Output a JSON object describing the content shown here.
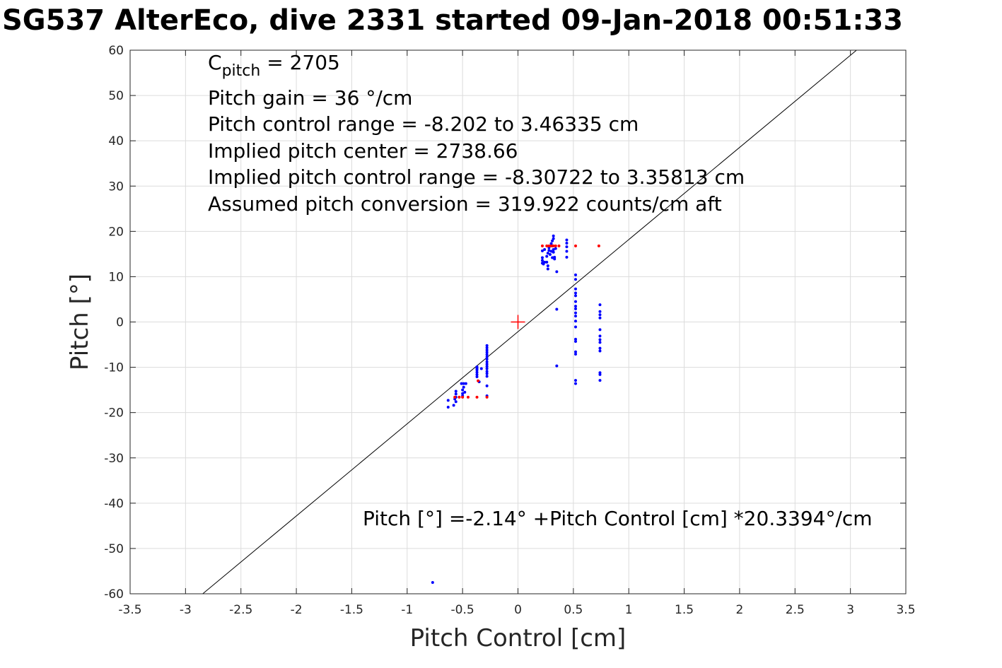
{
  "chart_data": {
    "type": "scatter",
    "title": "SG537 AlterEco, dive 2331 started 09-Jan-2018 00:51:33",
    "xlabel": "Pitch Control [cm]",
    "ylabel": "Pitch [°]",
    "xlim": [
      -3.5,
      3.5
    ],
    "ylim": [
      -60,
      60
    ],
    "xticks": [
      "-3.5",
      "-3",
      "-2.5",
      "-2",
      "-1.5",
      "-1",
      "-0.5",
      "0",
      "0.5",
      "1",
      "1.5",
      "2",
      "2.5",
      "3",
      "3.5"
    ],
    "yticks": [
      "60",
      "50",
      "40",
      "30",
      "20",
      "10",
      "0",
      "-10",
      "-20",
      "-30",
      "-40",
      "-50",
      "-60"
    ],
    "grid": true,
    "colors": {
      "measured": "#0000ff",
      "flagged": "#ff0000",
      "center_marker": "#ff0000",
      "fit_line": "#000000"
    },
    "fit_line": {
      "intercept": -2.14,
      "slope": 20.3394
    },
    "center_marker": {
      "x": 0,
      "y": 0
    },
    "series": [
      {
        "color": "#0000ff",
        "points": [
          [
            -0.63,
            -17.3
          ],
          [
            -0.63,
            -18.8
          ],
          [
            -0.58,
            -18.4
          ],
          [
            -0.57,
            -17.0
          ],
          [
            -0.56,
            -16.6
          ],
          [
            -0.56,
            -15.9
          ],
          [
            -0.56,
            -15.3
          ],
          [
            -0.56,
            -17.6
          ],
          [
            -0.51,
            -13.6
          ],
          [
            -0.5,
            -15.0
          ],
          [
            -0.5,
            -15.8
          ],
          [
            -0.5,
            -16.3
          ],
          [
            -0.49,
            -14.4
          ],
          [
            -0.49,
            -13.6
          ],
          [
            -0.48,
            -15.5
          ],
          [
            -0.47,
            -13.6
          ],
          [
            -0.37,
            -10.1
          ],
          [
            -0.37,
            -10.6
          ],
          [
            -0.37,
            -11.1
          ],
          [
            -0.37,
            -11.6
          ],
          [
            -0.37,
            -12.1
          ],
          [
            -0.37,
            -10.3
          ],
          [
            -0.37,
            -9.9
          ],
          [
            -0.35,
            -13.2
          ],
          [
            -0.33,
            -10.3
          ],
          [
            -0.28,
            -5.2
          ],
          [
            -0.28,
            -5.7
          ],
          [
            -0.28,
            -6.2
          ],
          [
            -0.28,
            -6.7
          ],
          [
            -0.28,
            -7.2
          ],
          [
            -0.28,
            -7.7
          ],
          [
            -0.28,
            -8.2
          ],
          [
            -0.28,
            -8.8
          ],
          [
            -0.28,
            -9.3
          ],
          [
            -0.28,
            -9.8
          ],
          [
            -0.28,
            -10.3
          ],
          [
            -0.28,
            -10.9
          ],
          [
            -0.28,
            -11.4
          ],
          [
            -0.28,
            -12.0
          ],
          [
            -0.28,
            -14.1
          ],
          [
            -0.28,
            -16.3
          ],
          [
            0.22,
            13.0
          ],
          [
            0.22,
            13.6
          ],
          [
            0.22,
            14.2
          ],
          [
            0.22,
            15.7
          ],
          [
            0.23,
            12.8
          ],
          [
            0.24,
            13.2
          ],
          [
            0.24,
            16.0
          ],
          [
            0.26,
            14.5
          ],
          [
            0.26,
            13.2
          ],
          [
            0.27,
            11.7
          ],
          [
            0.27,
            12.4
          ],
          [
            0.27,
            15.2
          ],
          [
            0.28,
            15.8
          ],
          [
            0.28,
            16.4
          ],
          [
            0.29,
            14.9
          ],
          [
            0.3,
            17.3
          ],
          [
            0.3,
            15.6
          ],
          [
            0.31,
            14.2
          ],
          [
            0.31,
            16.8
          ],
          [
            0.31,
            17.9
          ],
          [
            0.32,
            18.4
          ],
          [
            0.32,
            19.0
          ],
          [
            0.32,
            16.0
          ],
          [
            0.32,
            15.4
          ],
          [
            0.33,
            14.3
          ],
          [
            0.33,
            13.9
          ],
          [
            0.34,
            16.2
          ],
          [
            0.35,
            11.1
          ],
          [
            0.44,
            18.1
          ],
          [
            0.44,
            17.4
          ],
          [
            0.44,
            16.6
          ],
          [
            0.44,
            15.6
          ],
          [
            0.44,
            14.3
          ],
          [
            0.35,
            2.8
          ],
          [
            0.35,
            -9.7
          ],
          [
            0.52,
            10.4
          ],
          [
            0.52,
            9.4
          ],
          [
            0.52,
            7.3
          ],
          [
            0.52,
            6.4
          ],
          [
            0.52,
            5.8
          ],
          [
            0.52,
            4.5
          ],
          [
            0.52,
            3.5
          ],
          [
            0.52,
            2.9
          ],
          [
            0.52,
            2.0
          ],
          [
            0.52,
            1.3
          ],
          [
            0.52,
            0.2
          ],
          [
            0.52,
            -1.1
          ],
          [
            0.52,
            -3.8
          ],
          [
            0.52,
            -4.3
          ],
          [
            0.52,
            -6.6
          ],
          [
            0.52,
            -7.1
          ],
          [
            0.52,
            -12.9
          ],
          [
            0.52,
            -13.6
          ],
          [
            0.74,
            3.8
          ],
          [
            0.74,
            2.3
          ],
          [
            0.74,
            1.6
          ],
          [
            0.74,
            0.9
          ],
          [
            0.74,
            -1.7
          ],
          [
            0.74,
            -3.1
          ],
          [
            0.74,
            -3.9
          ],
          [
            0.74,
            -4.5
          ],
          [
            0.74,
            -5.8
          ],
          [
            0.74,
            -6.4
          ],
          [
            0.74,
            -11.2
          ],
          [
            0.74,
            -11.6
          ],
          [
            0.74,
            -12.9
          ],
          [
            -0.77,
            -57.5
          ]
        ]
      },
      {
        "color": "#ff0000",
        "points": [
          [
            -0.57,
            -16.6
          ],
          [
            -0.53,
            -16.6
          ],
          [
            -0.5,
            -16.6
          ],
          [
            -0.45,
            -16.6
          ],
          [
            -0.37,
            -16.6
          ],
          [
            -0.36,
            -13.0
          ],
          [
            -0.28,
            -16.6
          ],
          [
            0.22,
            16.8
          ],
          [
            0.26,
            16.8
          ],
          [
            0.28,
            16.8
          ],
          [
            0.3,
            16.8
          ],
          [
            0.32,
            16.8
          ],
          [
            0.34,
            16.8
          ],
          [
            0.37,
            16.8
          ],
          [
            0.52,
            16.8
          ],
          [
            0.73,
            16.8
          ]
        ]
      }
    ],
    "annotations": [
      {
        "base": "C",
        "subscript": "pitch",
        "text": " = 2705"
      },
      {
        "text": "Pitch gain = 36 °/cm"
      },
      {
        "text": "Pitch control range = -8.202 to 3.46335 cm"
      },
      {
        "text": "Implied pitch center = 2738.66"
      },
      {
        "text": "Implied pitch control range = -8.30722 to 3.35813 cm"
      },
      {
        "text": "Assumed pitch conversion = 319.922 counts/cm aft"
      }
    ],
    "fit_label": "Pitch [°] =-2.14° +Pitch Control [cm] *20.3394°/cm"
  }
}
